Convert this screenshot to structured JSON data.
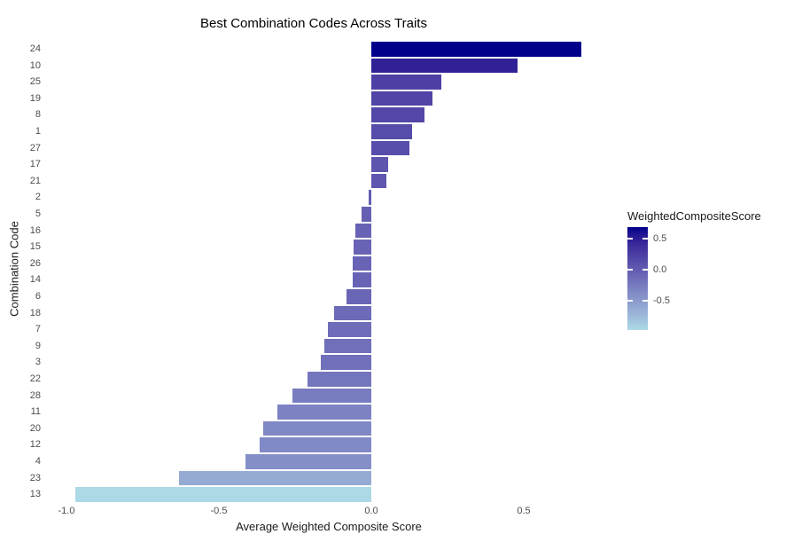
{
  "chart_data": {
    "type": "bar",
    "orientation": "horizontal",
    "title": "Best Combination Codes Across Traits",
    "xlabel": "Average Weighted Composite Score",
    "ylabel": "Combination Code",
    "categories": [
      "24",
      "10",
      "25",
      "19",
      "8",
      "1",
      "27",
      "17",
      "21",
      "2",
      "5",
      "16",
      "15",
      "26",
      "14",
      "6",
      "18",
      "7",
      "9",
      "3",
      "22",
      "28",
      "11",
      "20",
      "12",
      "4",
      "23",
      "13"
    ],
    "values": [
      0.69,
      0.48,
      0.23,
      0.2,
      0.175,
      0.135,
      0.125,
      0.055,
      0.048,
      -0.008,
      -0.033,
      -0.052,
      -0.057,
      -0.06,
      -0.062,
      -0.082,
      -0.123,
      -0.143,
      -0.153,
      -0.165,
      -0.209,
      -0.259,
      -0.308,
      -0.355,
      -0.365,
      -0.413,
      -0.632,
      -0.97
    ],
    "xlim": [
      -1.05,
      0.77
    ],
    "x_tick_values": [
      -1.0,
      -0.5,
      0.0,
      0.5
    ],
    "x_tick_labels": [
      "-1.0",
      "-0.5",
      "0.0",
      "0.5"
    ],
    "grid": false,
    "legend": {
      "title": "WeightedCompositeScore",
      "position": "right",
      "tick_values": [
        0.5,
        0.0,
        -0.5
      ],
      "tick_labels": [
        "0.5",
        "0.0",
        "-0.5"
      ]
    },
    "colors": {
      "gradient_low": "#ADD8E6",
      "gradient_high": "#00008B",
      "axis_text": "#4D4D4D",
      "axis_title": "#1A1A1A",
      "title_text": "#000000",
      "background": "#FFFFFF"
    }
  }
}
